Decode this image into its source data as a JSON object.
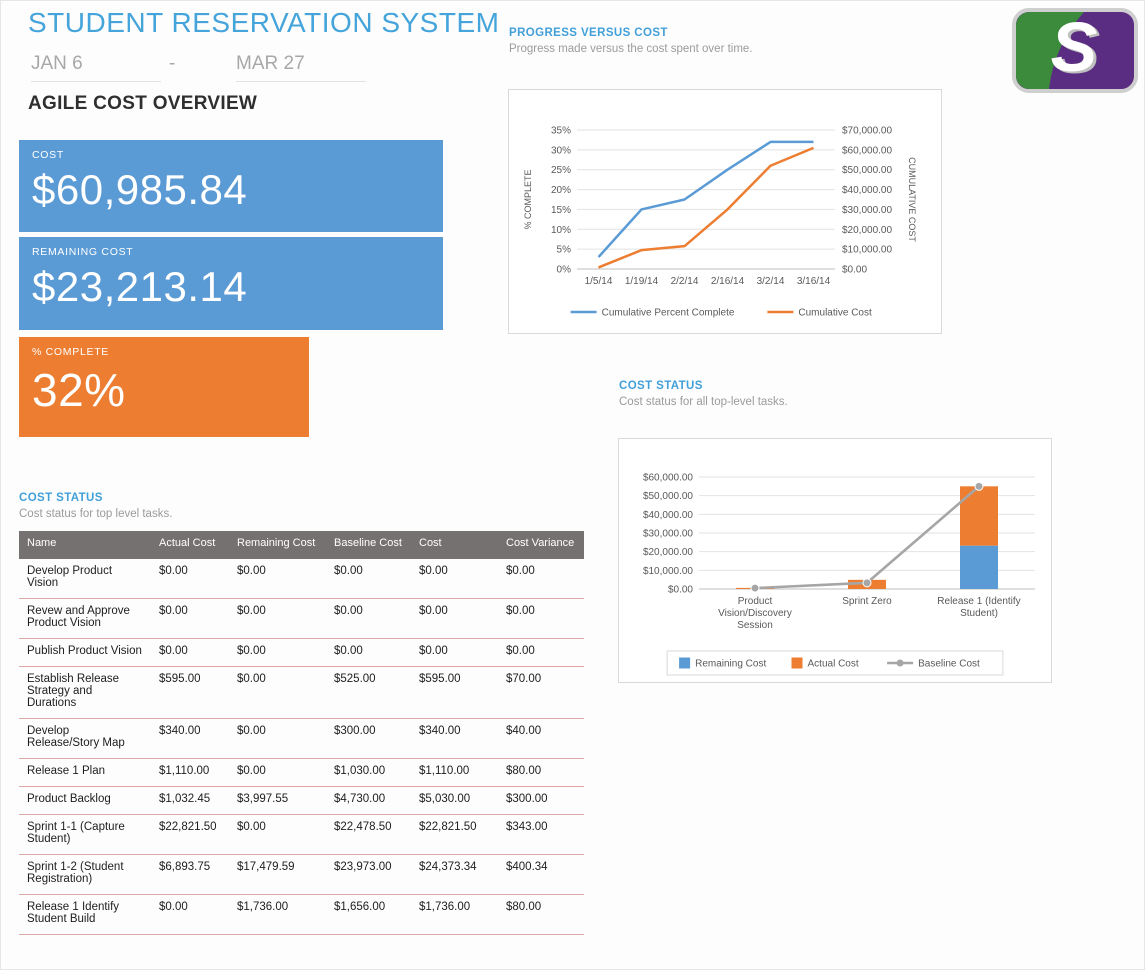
{
  "header": {
    "title": "STUDENT RESERVATION SYSTEM",
    "date_start": "JAN 6",
    "date_separator": "-",
    "date_end": "MAR 27",
    "subtitle": "AGILE COST OVERVIEW"
  },
  "kpis": [
    {
      "label": "COST",
      "value": "$60,985.84",
      "color": "#5b9bd5"
    },
    {
      "label": "REMAINING COST",
      "value": "$23,213.14",
      "color": "#5b9bd5"
    },
    {
      "label": "% COMPLETE",
      "value": "32%",
      "color": "#ed7d31"
    }
  ],
  "progress_section": {
    "title": "PROGRESS VERSUS COST",
    "subtitle": "Progress made versus the cost spent over time."
  },
  "cost_status_chart_section": {
    "title": "COST STATUS",
    "subtitle": "Cost status for all top-level tasks."
  },
  "cost_status_table_section": {
    "title": "COST STATUS",
    "subtitle": "Cost status for top level tasks."
  },
  "logo": {
    "letter": "S",
    "green": "#3c8a3c",
    "purple": "#5b2d82"
  },
  "chart_data": [
    {
      "type": "line",
      "title": "PROGRESS VERSUS COST",
      "x": [
        "1/5/14",
        "1/19/14",
        "2/2/14",
        "2/16/14",
        "3/2/14",
        "3/16/14"
      ],
      "left_axis": {
        "title": "% COMPLETE",
        "min": 0,
        "max": 35,
        "step": 5,
        "tick_labels": [
          "0%",
          "5%",
          "10%",
          "15%",
          "20%",
          "25%",
          "30%",
          "35%"
        ]
      },
      "right_axis": {
        "title": "CUMULATIVE COST",
        "min": 0,
        "max": 70000,
        "step": 10000,
        "tick_labels": [
          "$0.00",
          "$10,000.00",
          "$20,000.00",
          "$30,000.00",
          "$40,000.00",
          "$50,000.00",
          "$60,000.00",
          "$70,000.00"
        ]
      },
      "grid": true,
      "legend_position": "bottom",
      "series": [
        {
          "name": "Cumulative Percent Complete",
          "axis": "left",
          "color": "#5b9bd5",
          "values": [
            3,
            15,
            17.5,
            25,
            32,
            32
          ]
        },
        {
          "name": "Cumulative Cost",
          "axis": "right",
          "color": "#ed7d31",
          "values": [
            800,
            9500,
            11500,
            30000,
            52000,
            61000
          ]
        }
      ]
    },
    {
      "type": "bar",
      "subtype": "stacked-bars-with-line",
      "title": "COST STATUS",
      "categories": [
        "Product Vision/Discovery Session",
        "Sprint Zero",
        "Release 1 (Identify Student)"
      ],
      "y_axis": {
        "min": 0,
        "max": 60000,
        "step": 10000,
        "tick_labels": [
          "$0.00",
          "$10,000.00",
          "$20,000.00",
          "$30,000.00",
          "$40,000.00",
          "$50,000.00",
          "$60,000.00"
        ]
      },
      "grid": true,
      "legend_position": "bottom",
      "series": [
        {
          "name": "Remaining Cost",
          "type": "bar",
          "color": "#5b9bd5",
          "values": [
            0,
            0,
            23213.14
          ]
        },
        {
          "name": "Actual Cost",
          "type": "bar",
          "color": "#ed7d31",
          "values": [
            600,
            4900,
            31800
          ]
        },
        {
          "name": "Baseline Cost",
          "type": "line",
          "color": "#a6a6a6",
          "values": [
            500,
            3300,
            55000
          ]
        }
      ]
    }
  ],
  "table": {
    "columns": [
      "Name",
      "Actual Cost",
      "Remaining Cost",
      "Baseline Cost",
      "Cost",
      "Cost Variance"
    ],
    "rows": [
      [
        "Develop Product Vision",
        "$0.00",
        "$0.00",
        "$0.00",
        "$0.00",
        "$0.00"
      ],
      [
        "Revew and Approve Product Vision",
        "$0.00",
        "$0.00",
        "$0.00",
        "$0.00",
        "$0.00"
      ],
      [
        "Publish Product Vision",
        "$0.00",
        "$0.00",
        "$0.00",
        "$0.00",
        "$0.00"
      ],
      [
        "Establish Release Strategy and Durations",
        "$595.00",
        "$0.00",
        "$525.00",
        "$595.00",
        "$70.00"
      ],
      [
        "Develop Release/Story Map",
        "$340.00",
        "$0.00",
        "$300.00",
        "$340.00",
        "$40.00"
      ],
      [
        "Release 1 Plan",
        "$1,110.00",
        "$0.00",
        "$1,030.00",
        "$1,110.00",
        "$80.00"
      ],
      [
        "Product Backlog",
        "$1,032.45",
        "$3,997.55",
        "$4,730.00",
        "$5,030.00",
        "$300.00"
      ],
      [
        "Sprint 1-1 (Capture Student)",
        "$22,821.50",
        "$0.00",
        "$22,478.50",
        "$22,821.50",
        "$343.00"
      ],
      [
        "Sprint 1-2 (Student Registration)",
        "$6,893.75",
        "$17,479.59",
        "$23,973.00",
        "$24,373.34",
        "$400.34"
      ],
      [
        "Release 1 Identify Student Build",
        "$0.00",
        "$1,736.00",
        "$1,656.00",
        "$1,736.00",
        "$80.00"
      ]
    ]
  }
}
